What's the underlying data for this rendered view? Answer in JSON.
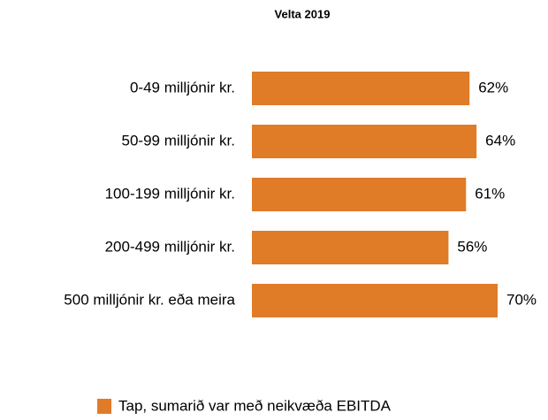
{
  "chart_data": {
    "type": "bar",
    "orientation": "horizontal",
    "title": "Velta 2019",
    "categories": [
      "0-49 milljónir kr.",
      "50-99 milljónir kr.",
      "100-199 milljónir kr.",
      "200-499 milljónir kr.",
      "500 milljónir kr. eða meira"
    ],
    "series": [
      {
        "name": "Tap, sumarið var með neikvæða EBITDA",
        "color": "#e07b28",
        "values": [
          62,
          64,
          61,
          56,
          70
        ],
        "value_labels": [
          "62%",
          "64%",
          "61%",
          "56%",
          "70%"
        ]
      }
    ],
    "legend": "bottom"
  }
}
